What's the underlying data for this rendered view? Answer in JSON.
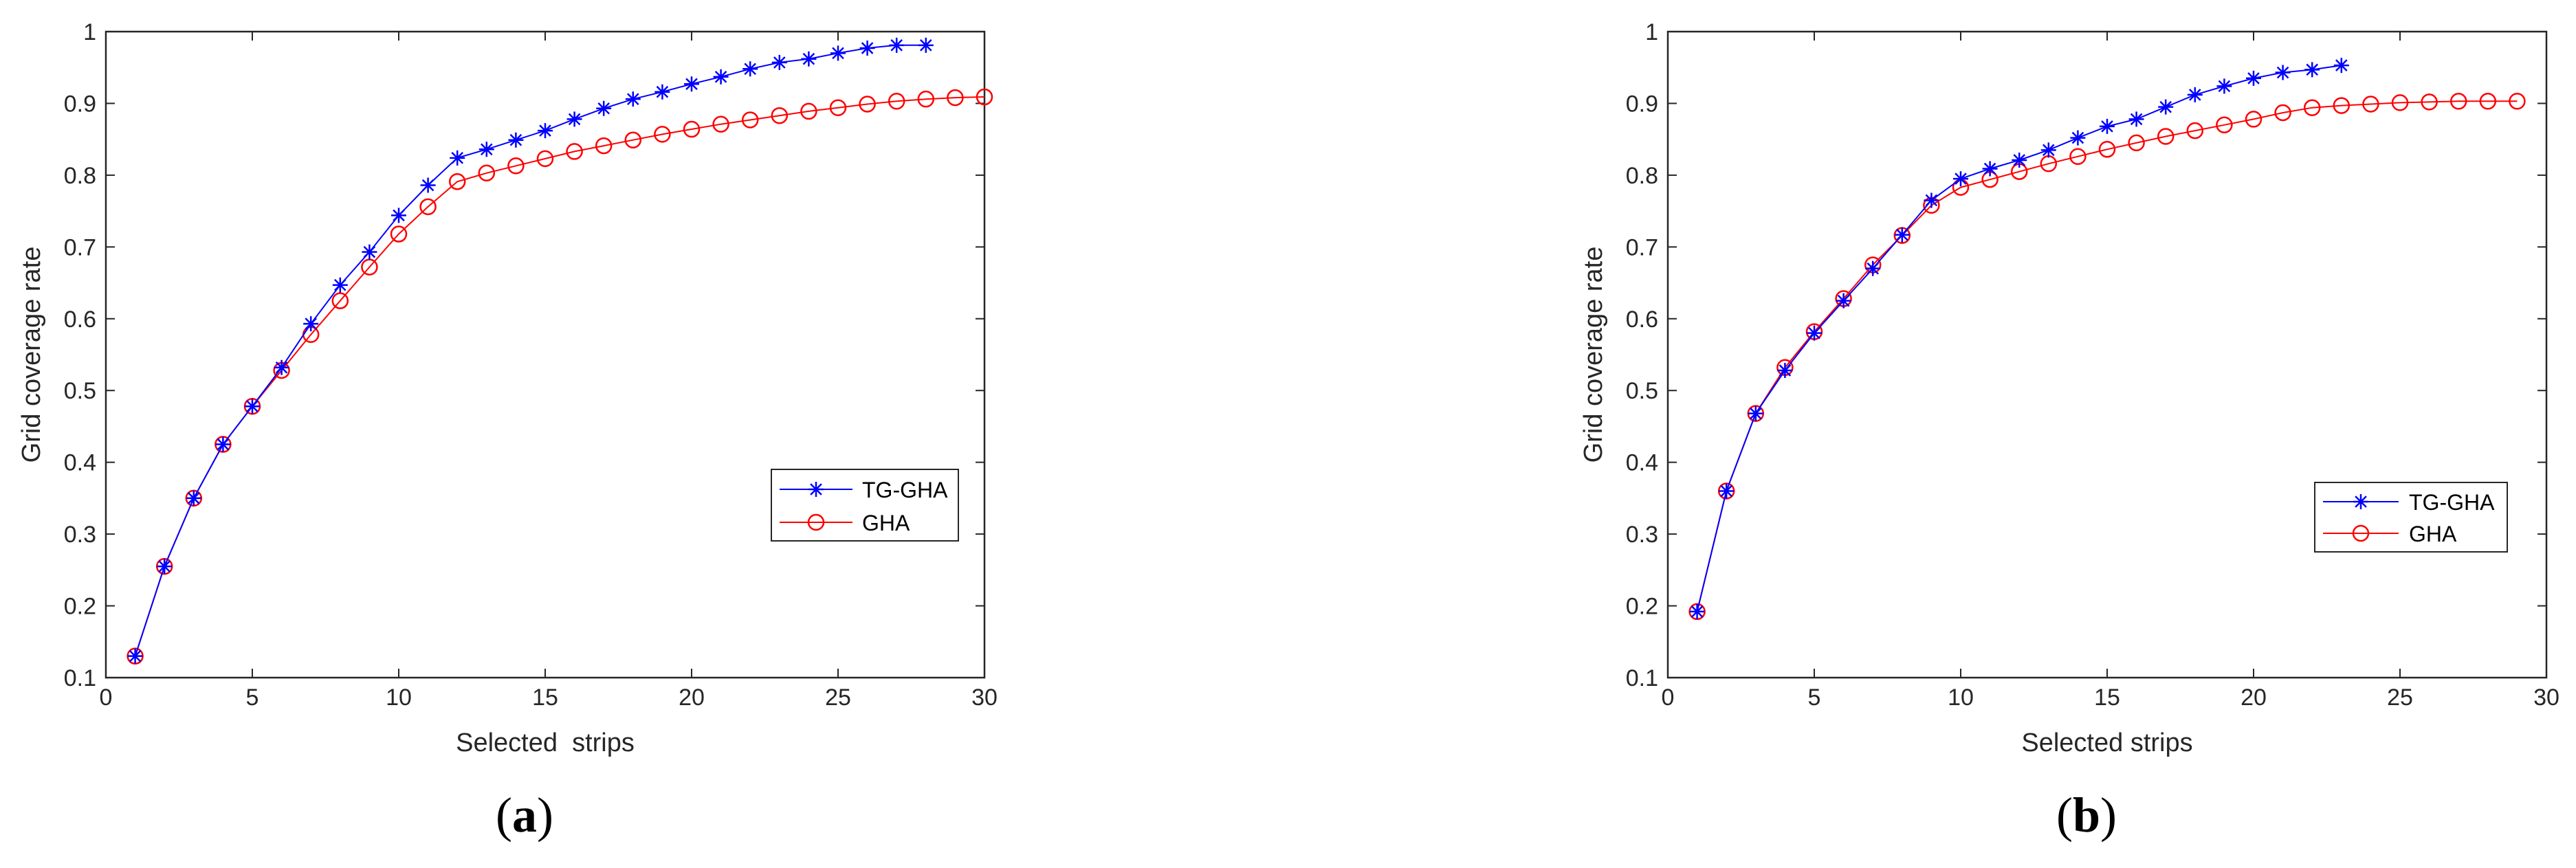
{
  "chart_data": [
    {
      "type": "line",
      "xlabel": "Selected  strips",
      "ylabel": "Grid coverage rate",
      "xlim": [
        0,
        30
      ],
      "ylim": [
        0.1,
        1
      ],
      "xticks": [
        "0",
        "5",
        "10",
        "15",
        "20",
        "25",
        "30"
      ],
      "yticks": [
        "0.1",
        "0.2",
        "0.3",
        "0.4",
        "0.5",
        "0.6",
        "0.7",
        "0.8",
        "0.9",
        "1"
      ],
      "grid": false,
      "legend_position": "right",
      "caption": "(a)",
      "caption_parts": {
        "open": "(",
        "letter": "a",
        "close": ")"
      },
      "series": [
        {
          "name": "TG-GHA",
          "color": "#0000ff",
          "marker": "asterisk",
          "x": [
            1,
            2,
            3,
            4,
            5,
            6,
            7,
            8,
            9,
            10,
            11,
            12,
            13,
            14,
            15,
            16,
            17,
            18,
            19,
            20,
            21,
            22,
            23,
            24,
            25,
            26,
            27,
            28
          ],
          "y": [
            0.13,
            0.255,
            0.35,
            0.425,
            0.478,
            0.532,
            0.593,
            0.647,
            0.693,
            0.744,
            0.786,
            0.824,
            0.836,
            0.849,
            0.862,
            0.878,
            0.893,
            0.906,
            0.916,
            0.927,
            0.937,
            0.948,
            0.957,
            0.962,
            0.97,
            0.977,
            0.981,
            0.981
          ]
        },
        {
          "name": "GHA",
          "color": "#ff0000",
          "marker": "circle",
          "x": [
            1,
            2,
            3,
            4,
            5,
            6,
            7,
            8,
            9,
            10,
            11,
            12,
            13,
            14,
            15,
            16,
            17,
            18,
            19,
            20,
            21,
            22,
            23,
            24,
            25,
            26,
            27,
            28,
            29,
            30
          ],
          "y": [
            0.13,
            0.255,
            0.35,
            0.425,
            0.478,
            0.528,
            0.578,
            0.625,
            0.672,
            0.718,
            0.756,
            0.791,
            0.803,
            0.813,
            0.823,
            0.833,
            0.841,
            0.849,
            0.857,
            0.864,
            0.871,
            0.877,
            0.883,
            0.889,
            0.894,
            0.899,
            0.903,
            0.906,
            0.908,
            0.909
          ]
        }
      ]
    },
    {
      "type": "line",
      "xlabel": "Selected strips",
      "ylabel": "Grid coverage rate",
      "xlim": [
        0,
        30
      ],
      "ylim": [
        0.1,
        1
      ],
      "xticks": [
        "0",
        "5",
        "10",
        "15",
        "20",
        "25",
        "30"
      ],
      "yticks": [
        "0.1",
        "0.2",
        "0.3",
        "0.4",
        "0.5",
        "0.6",
        "0.7",
        "0.8",
        "0.9",
        "1"
      ],
      "grid": false,
      "legend_position": "right",
      "caption": "(b)",
      "caption_parts": {
        "open": "(",
        "letter": "b",
        "close": ")"
      },
      "series": [
        {
          "name": "TG-GHA",
          "color": "#0000ff",
          "marker": "asterisk",
          "x": [
            1,
            2,
            3,
            4,
            5,
            6,
            7,
            8,
            9,
            10,
            11,
            12,
            13,
            14,
            15,
            16,
            17,
            18,
            19,
            20,
            21,
            22,
            23
          ],
          "y": [
            0.192,
            0.36,
            0.468,
            0.528,
            0.58,
            0.625,
            0.67,
            0.717,
            0.765,
            0.795,
            0.809,
            0.821,
            0.835,
            0.852,
            0.868,
            0.878,
            0.895,
            0.912,
            0.924,
            0.935,
            0.943,
            0.947,
            0.953
          ]
        },
        {
          "name": "GHA",
          "color": "#ff0000",
          "marker": "circle",
          "x": [
            1,
            2,
            3,
            4,
            5,
            6,
            7,
            8,
            9,
            10,
            11,
            12,
            13,
            14,
            15,
            16,
            17,
            18,
            19,
            20,
            21,
            22,
            23,
            24,
            25,
            26,
            27,
            28,
            29
          ],
          "y": [
            0.192,
            0.36,
            0.468,
            0.532,
            0.582,
            0.628,
            0.675,
            0.716,
            0.758,
            0.783,
            0.794,
            0.805,
            0.816,
            0.826,
            0.836,
            0.845,
            0.854,
            0.862,
            0.87,
            0.878,
            0.887,
            0.894,
            0.897,
            0.899,
            0.901,
            0.902,
            0.903,
            0.903,
            0.903
          ]
        }
      ]
    }
  ]
}
